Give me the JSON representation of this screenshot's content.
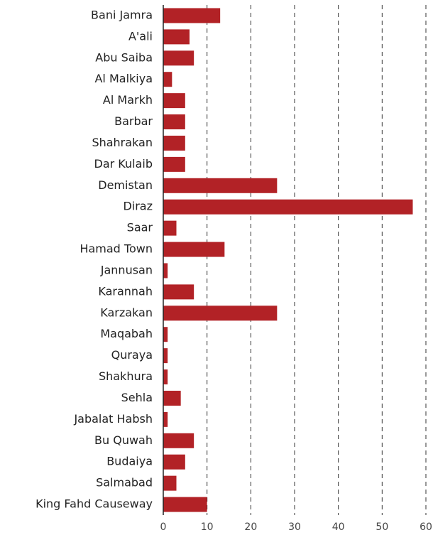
{
  "chart_data": {
    "type": "bar",
    "orientation": "horizontal",
    "categories": [
      "Bani Jamra",
      "A'ali",
      "Abu Saiba",
      "Al Malkiya",
      "Al Markh",
      "Barbar",
      "Shahrakan",
      "Dar Kulaib",
      "Demistan",
      "Diraz",
      "Saar",
      "Hamad Town",
      "Jannusan",
      "Karannah",
      "Karzakan",
      "Maqabah",
      "Quraya",
      "Shakhura",
      "Sehla",
      "Jabalat Habsh",
      "Bu Quwah",
      "Budaiya",
      "Salmabad",
      "King Fahd Causeway"
    ],
    "values": [
      13,
      6,
      7,
      2,
      5,
      5,
      5,
      5,
      26,
      57,
      3,
      14,
      1,
      7,
      26,
      1,
      1,
      1,
      4,
      1,
      7,
      5,
      3,
      10
    ],
    "color": "#b22226",
    "xlim": [
      0,
      60
    ],
    "xticks": [
      0,
      10,
      20,
      30,
      40,
      50,
      60
    ],
    "grid": true
  }
}
